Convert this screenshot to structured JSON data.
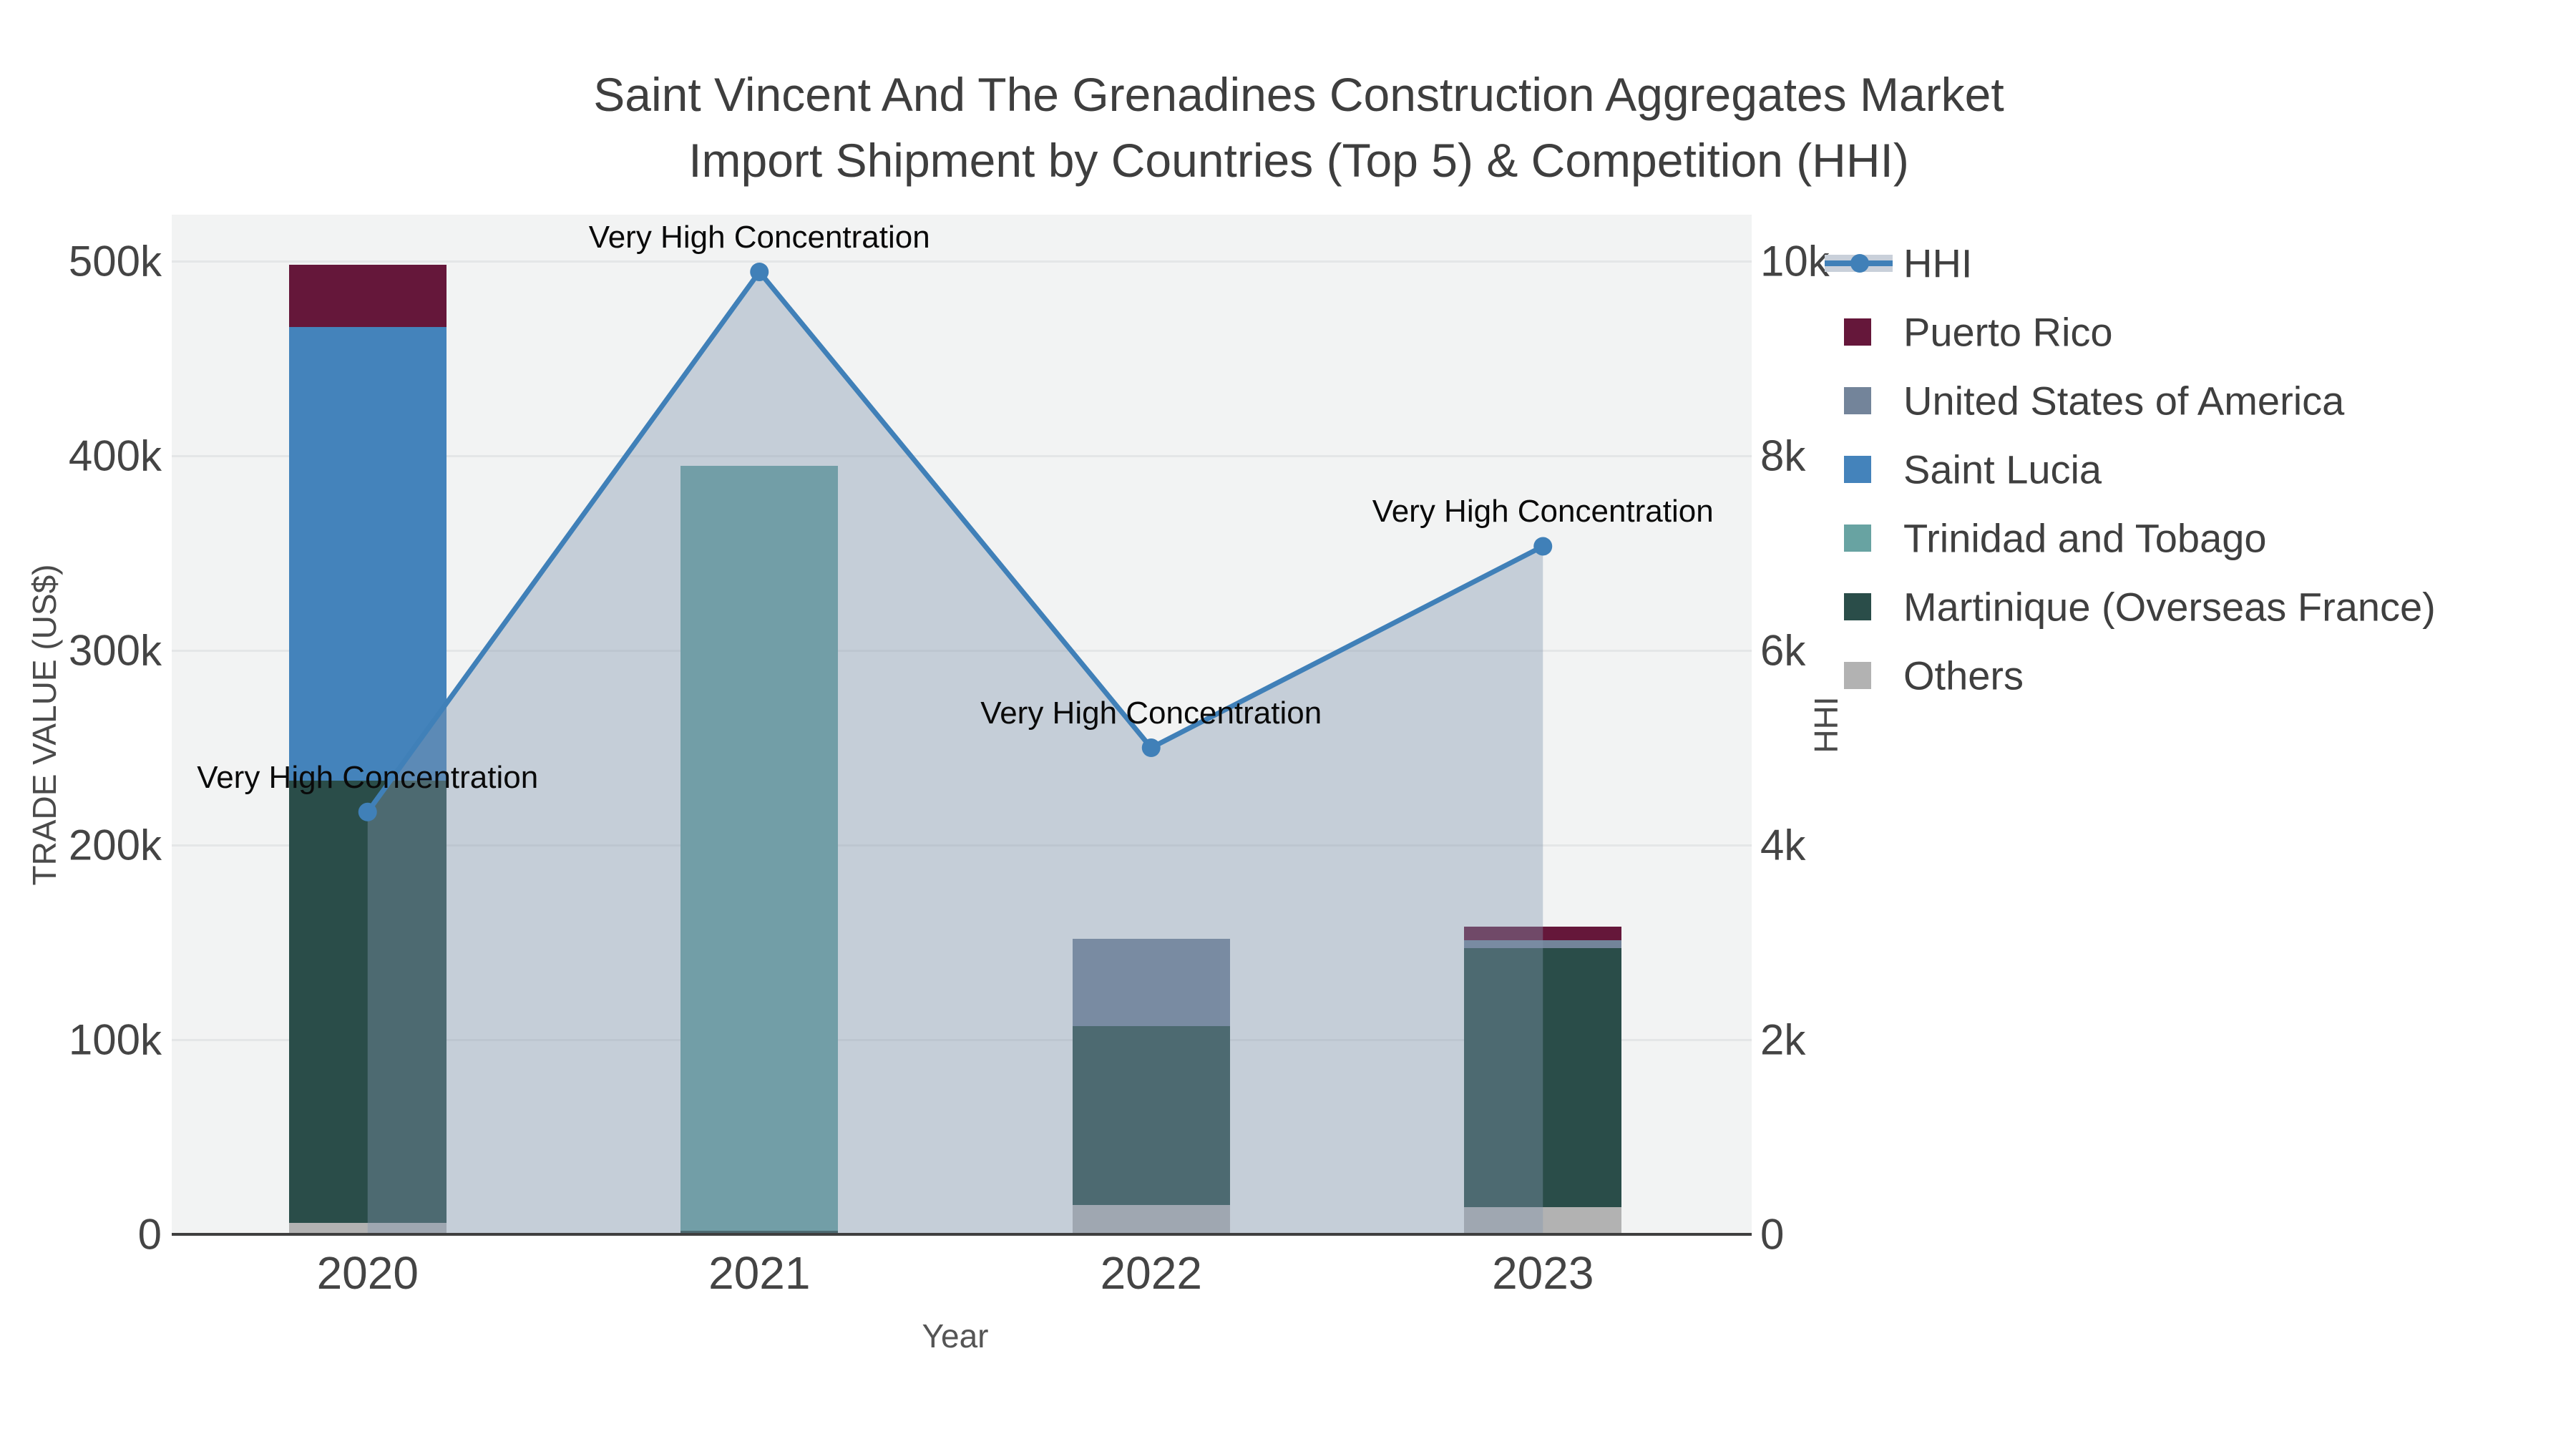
{
  "title": {
    "line1": "Saint Vincent And The Grenadines Construction Aggregates Market",
    "line2": "Import Shipment by Countries (Top 5) & Competition (HHI)"
  },
  "axes": {
    "x": {
      "title": "Year",
      "ticks": [
        "2020",
        "2021",
        "2022",
        "2023"
      ]
    },
    "y_left": {
      "title": "TRADE VALUE (US$)",
      "ticks": [
        "0",
        "100k",
        "200k",
        "300k",
        "400k",
        "500k"
      ]
    },
    "y_right": {
      "title": "HHI",
      "ticks": [
        "0",
        "2k",
        "4k",
        "6k",
        "8k",
        "10k"
      ]
    }
  },
  "legend": {
    "items": [
      {
        "label": "HHI",
        "color": "#4080b8",
        "kind": "line"
      },
      {
        "label": "Puerto Rico",
        "color": "#65173a",
        "kind": "bar"
      },
      {
        "label": "United States of America",
        "color": "#73849a",
        "kind": "bar"
      },
      {
        "label": "Saint Lucia",
        "color": "#4483bb",
        "kind": "bar"
      },
      {
        "label": "Trinidad and Tobago",
        "color": "#68a3a2",
        "kind": "bar"
      },
      {
        "label": "Martinique (Overseas France)",
        "color": "#2a4d49",
        "kind": "bar"
      },
      {
        "label": "Others",
        "color": "#b2b2b2",
        "kind": "bar"
      }
    ]
  },
  "annotation_label": "Very High Concentration",
  "colors": {
    "plot_bg": "#f2f3f3",
    "grid": "#e4e6e7",
    "axis_line": "#3f3f3f",
    "tick_text": "#444444",
    "title_text": "#3e3e3e",
    "hhi_line": "#4080b8",
    "hhi_area_fill": "rgba(130,150,175,0.40)"
  },
  "chart_data": {
    "type": "combo-stacked-bar-line",
    "categories": [
      "2020",
      "2021",
      "2022",
      "2023"
    ],
    "bar_unit": "US$",
    "stack_order_bottom_to_top": [
      "Others",
      "Martinique (Overseas France)",
      "Trinidad and Tobago",
      "Saint Lucia",
      "United States of America",
      "Puerto Rico"
    ],
    "series": [
      {
        "name": "Puerto Rico",
        "color": "#65173a",
        "values": [
          32000,
          0,
          0,
          7000
        ]
      },
      {
        "name": "United States of America",
        "color": "#73849a",
        "values": [
          0,
          0,
          45000,
          4000
        ]
      },
      {
        "name": "Saint Lucia",
        "color": "#4483bb",
        "values": [
          233000,
          0,
          0,
          0
        ]
      },
      {
        "name": "Trinidad and Tobago",
        "color": "#68a3a2",
        "values": [
          0,
          393000,
          0,
          0
        ]
      },
      {
        "name": "Martinique (Overseas France)",
        "color": "#2a4d49",
        "values": [
          227000,
          2000,
          92000,
          133000
        ]
      },
      {
        "name": "Others",
        "color": "#b2b2b2",
        "values": [
          6000,
          0,
          15000,
          14000
        ]
      }
    ],
    "bar_totals": [
      498000,
      395000,
      152000,
      158000
    ],
    "line_series": {
      "name": "HHI",
      "values": [
        4340,
        9890,
        5000,
        7070
      ],
      "axis": "right"
    },
    "annotations": [
      "Very High Concentration",
      "Very High Concentration",
      "Very High Concentration",
      "Very High Concentration"
    ],
    "xlabel": "Year",
    "ylabel_left": "TRADE VALUE (US$)",
    "ylabel_right": "HHI",
    "ylim_left": [
      0,
      500000
    ],
    "ylim_right": [
      0,
      10000
    ],
    "grid": true,
    "legend_position": "right"
  }
}
